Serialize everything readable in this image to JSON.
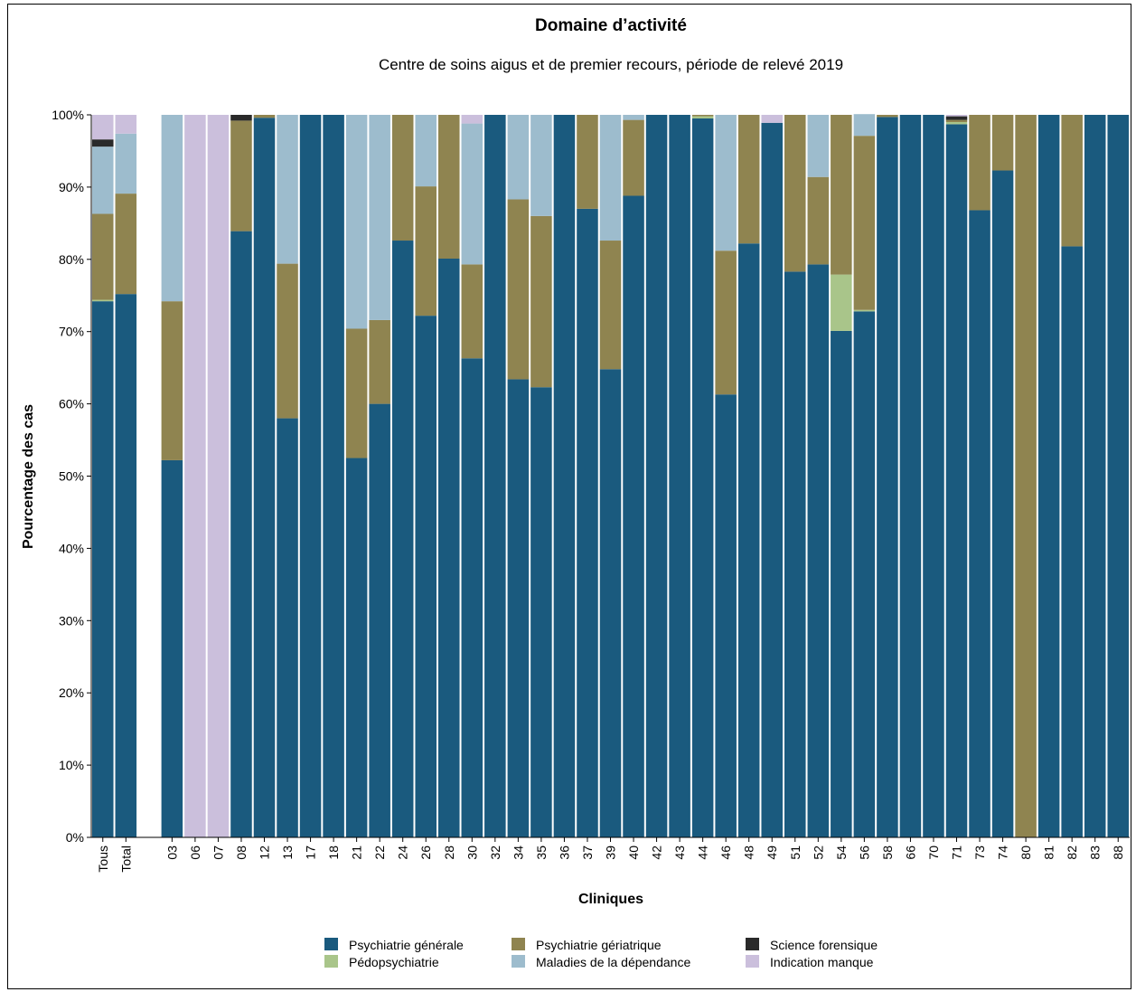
{
  "chart_data": {
    "type": "bar",
    "stacked": true,
    "title": "Domaine d’activité",
    "subtitle": "Centre de soins aigus et de premier recours, période de relevé 2019",
    "xlabel": "Cliniques",
    "ylabel": "Pourcentage des cas",
    "ylim": [
      0,
      100
    ],
    "yticks": [
      "0%",
      "10%",
      "20%",
      "30%",
      "40%",
      "50%",
      "60%",
      "70%",
      "80%",
      "90%",
      "100%"
    ],
    "grid": false,
    "legend_position": "bottom",
    "categories": [
      "Tous",
      "Total",
      "",
      "03",
      "06",
      "07",
      "08",
      "12",
      "13",
      "17",
      "18",
      "21",
      "22",
      "24",
      "26",
      "28",
      "30",
      "32",
      "34",
      "35",
      "36",
      "37",
      "39",
      "40",
      "42",
      "43",
      "44",
      "46",
      "48",
      "49",
      "51",
      "52",
      "54",
      "56",
      "58",
      "66",
      "70",
      "71",
      "73",
      "74",
      "80",
      "81",
      "82",
      "83",
      "88"
    ],
    "series": [
      {
        "name": "Psychiatrie générale",
        "color": "#1a5a7e",
        "values": [
          74.2,
          75.2,
          0,
          52.2,
          0,
          0,
          83.9,
          99.6,
          58.0,
          100,
          100,
          52.5,
          60.0,
          82.6,
          72.2,
          80.1,
          66.3,
          100,
          63.4,
          62.3,
          100,
          87.0,
          64.8,
          88.8,
          100,
          100,
          99.5,
          61.3,
          82.2,
          98.9,
          78.3,
          79.3,
          70.1,
          72.8,
          99.7,
          100,
          100,
          98.7,
          86.8,
          92.3,
          0,
          100,
          81.8,
          100,
          100
        ]
      },
      {
        "name": "Pédopsychiatrie",
        "color": "#a9c58a",
        "values": [
          0.2,
          0,
          0,
          0,
          0,
          0,
          0,
          0,
          0,
          0,
          0,
          0,
          0,
          0,
          0,
          0,
          0,
          0,
          0,
          0,
          0,
          0,
          0,
          0,
          0,
          0,
          0.3,
          0,
          0,
          0,
          0,
          0,
          7.8,
          0.2,
          0,
          0,
          0,
          0.3,
          0,
          0,
          0,
          0,
          0,
          0,
          0
        ]
      },
      {
        "name": "Psychiatrie gériatrique",
        "color": "#8f8450",
        "values": [
          11.9,
          13.9,
          0,
          22.0,
          0,
          0,
          15.3,
          0.4,
          21.4,
          0,
          0,
          17.9,
          11.6,
          17.4,
          17.9,
          19.9,
          13.0,
          0,
          24.9,
          23.7,
          0,
          13.0,
          17.8,
          10.5,
          0,
          0,
          0.2,
          19.9,
          17.8,
          0,
          21.7,
          12.1,
          22.1,
          24.1,
          0.3,
          0,
          0,
          0.3,
          13.2,
          7.7,
          100,
          0,
          18.2,
          0,
          0
        ]
      },
      {
        "name": "Maladies de la dépendance",
        "color": "#9dbccd",
        "values": [
          9.3,
          8.3,
          0,
          25.8,
          0,
          0,
          0,
          0,
          20.6,
          0,
          0,
          29.6,
          28.4,
          0,
          9.9,
          0,
          19.5,
          0,
          11.7,
          14.0,
          0,
          0,
          17.4,
          0.7,
          0,
          0,
          0,
          18.8,
          0,
          0,
          0,
          8.6,
          0,
          3.0,
          0,
          0,
          0,
          0,
          0,
          0,
          0,
          0,
          0,
          0,
          0
        ]
      },
      {
        "name": "Science forensique",
        "color": "#2a2a2a",
        "values": [
          1.0,
          0,
          0,
          0,
          0,
          0,
          0.8,
          0,
          0,
          0,
          0,
          0,
          0,
          0,
          0,
          0,
          0,
          0,
          0,
          0,
          0,
          0,
          0,
          0,
          0,
          0,
          0,
          0,
          0,
          0,
          0,
          0,
          0,
          0,
          0,
          0,
          0,
          0.5,
          0,
          0,
          0,
          0,
          0,
          0,
          0
        ]
      },
      {
        "name": "Indication manque",
        "color": "#cbbfdc",
        "values": [
          3.4,
          2.6,
          0,
          0,
          100,
          100,
          0,
          0,
          0,
          0,
          0,
          0,
          0,
          0,
          0,
          0,
          1.2,
          0,
          0,
          0,
          0,
          0,
          0,
          0,
          0,
          0,
          0,
          0,
          0,
          1.1,
          0,
          0,
          0,
          0,
          0,
          0,
          0,
          0.2,
          0,
          0,
          0,
          0,
          0,
          0,
          0
        ]
      }
    ],
    "legend": [
      {
        "label": "Psychiatrie générale",
        "color": "#1a5a7e"
      },
      {
        "label": "Psychiatrie gériatrique",
        "color": "#8f8450"
      },
      {
        "label": "Science forensique",
        "color": "#2a2a2a"
      },
      {
        "label": "Pédopsychiatrie",
        "color": "#a9c58a"
      },
      {
        "label": "Maladies de la dépendance",
        "color": "#9dbccd"
      },
      {
        "label": "Indication manque",
        "color": "#cbbfdc"
      }
    ]
  }
}
